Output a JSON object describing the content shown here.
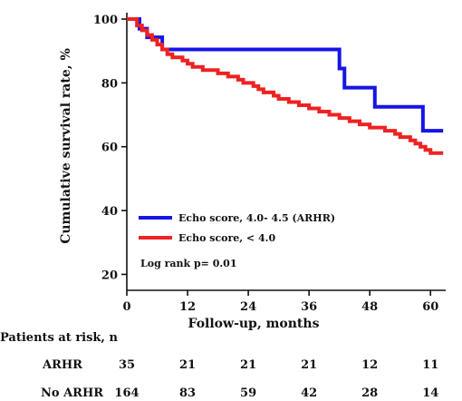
{
  "chart_data": {
    "type": "line",
    "step": true,
    "xlabel": "Follow-up, months",
    "ylabel": "Cumulative survival rate, %",
    "xlim": [
      0,
      63
    ],
    "ylim": [
      15,
      102
    ],
    "xticks": [
      0,
      12,
      24,
      36,
      48,
      60
    ],
    "yticks": [
      20,
      40,
      60,
      80,
      100
    ],
    "grid": false,
    "legend_placement": "bottom-left",
    "annotation": "Log rank p= 0.01",
    "series": [
      {
        "name": "Echo score, 4.0- 4.5 (ARHR)",
        "color": "#1515e6",
        "points": [
          [
            0,
            100
          ],
          [
            2.5,
            100
          ],
          [
            2.5,
            97
          ],
          [
            4,
            97
          ],
          [
            4,
            94.3
          ],
          [
            7,
            94.3
          ],
          [
            7,
            90.5
          ],
          [
            42,
            90.5
          ],
          [
            42,
            84.5
          ],
          [
            43,
            84.5
          ],
          [
            43,
            78.5
          ],
          [
            49,
            78.5
          ],
          [
            49,
            72.5
          ],
          [
            58.5,
            72.5
          ],
          [
            58.5,
            65
          ],
          [
            62.5,
            65
          ]
        ]
      },
      {
        "name": "Echo score, < 4.0",
        "color": "#ee2222",
        "points": [
          [
            0,
            100
          ],
          [
            2,
            100
          ],
          [
            2,
            98
          ],
          [
            3,
            98
          ],
          [
            3,
            96.5
          ],
          [
            4,
            96.5
          ],
          [
            4,
            95
          ],
          [
            5,
            95
          ],
          [
            5,
            93.5
          ],
          [
            6,
            93.5
          ],
          [
            6,
            92
          ],
          [
            7,
            92
          ],
          [
            7,
            90.5
          ],
          [
            8,
            90.5
          ],
          [
            8,
            89
          ],
          [
            9,
            89
          ],
          [
            9,
            88
          ],
          [
            11,
            88
          ],
          [
            11,
            87
          ],
          [
            12,
            87
          ],
          [
            12,
            86
          ],
          [
            13,
            86
          ],
          [
            13,
            85
          ],
          [
            15,
            85
          ],
          [
            15,
            84
          ],
          [
            18,
            84
          ],
          [
            18,
            83
          ],
          [
            20,
            83
          ],
          [
            20,
            82
          ],
          [
            22,
            82
          ],
          [
            22,
            81
          ],
          [
            23,
            81
          ],
          [
            23,
            80
          ],
          [
            25,
            80
          ],
          [
            25,
            79
          ],
          [
            26,
            79
          ],
          [
            26,
            78
          ],
          [
            27,
            78
          ],
          [
            27,
            77
          ],
          [
            29,
            77
          ],
          [
            29,
            76
          ],
          [
            30,
            76
          ],
          [
            30,
            75
          ],
          [
            32,
            75
          ],
          [
            32,
            74
          ],
          [
            34,
            74
          ],
          [
            34,
            73
          ],
          [
            36,
            73
          ],
          [
            36,
            72
          ],
          [
            38,
            72
          ],
          [
            38,
            71
          ],
          [
            40,
            71
          ],
          [
            40,
            70
          ],
          [
            42,
            70
          ],
          [
            42,
            69
          ],
          [
            44,
            69
          ],
          [
            44,
            68
          ],
          [
            46,
            68
          ],
          [
            46,
            67
          ],
          [
            48,
            67
          ],
          [
            48,
            66
          ],
          [
            51,
            66
          ],
          [
            51,
            65
          ],
          [
            53,
            65
          ],
          [
            53,
            64
          ],
          [
            54,
            64
          ],
          [
            54,
            63
          ],
          [
            56,
            63
          ],
          [
            56,
            62
          ],
          [
            57,
            62
          ],
          [
            57,
            61
          ],
          [
            58,
            61
          ],
          [
            58,
            60
          ],
          [
            59,
            60
          ],
          [
            59,
            59
          ],
          [
            60,
            59
          ],
          [
            60,
            58
          ],
          [
            62.5,
            58
          ]
        ]
      }
    ]
  },
  "risk_table": {
    "title": "Patients at risk, n",
    "columns_months": [
      0,
      12,
      24,
      36,
      48,
      60
    ],
    "rows": [
      {
        "label": "ARHR",
        "values": [
          "35",
          "21",
          "21",
          "21",
          "12",
          "11"
        ]
      },
      {
        "label": "No ARHR",
        "values": [
          "164",
          "83",
          "59",
          "42",
          "28",
          "14"
        ]
      }
    ]
  }
}
